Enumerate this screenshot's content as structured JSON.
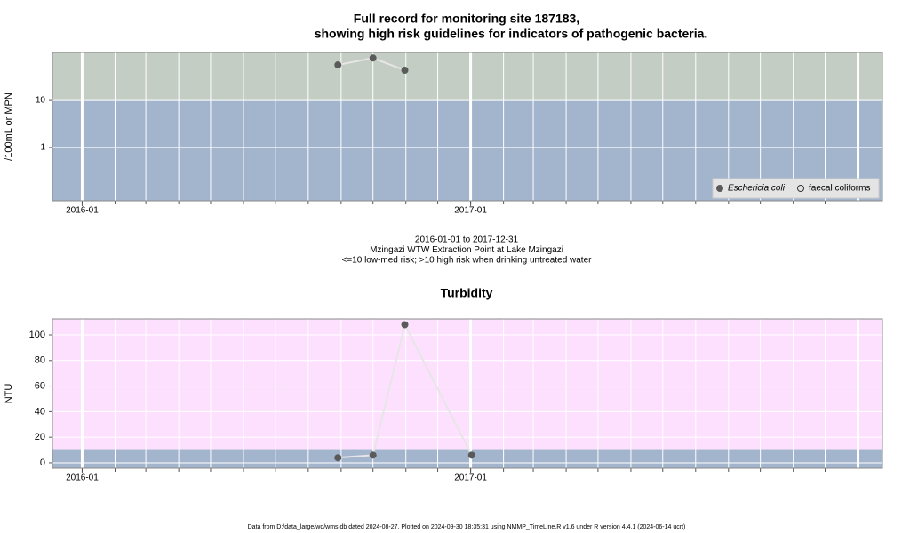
{
  "chart_data": [
    {
      "type": "line",
      "title": [
        "Full record for monitoring site 187183,",
        "showing high risk guidelines for indicators of pathogenic bacteria."
      ],
      "y_label": "/100mL or MPN",
      "log_y": true,
      "xlim": [
        "2015-12-04",
        "2018-01-24"
      ],
      "xticks": [
        {
          "value": "2016-01-01",
          "label": "2016-01"
        },
        {
          "value": "2017-01-01",
          "label": "2017-01"
        }
      ],
      "ylim": [
        0.074,
        105
      ],
      "yticks": [
        1,
        10
      ],
      "threshold": 10,
      "band_colors": {
        "above": "#c4cdc3",
        "below": "#a3b4cd"
      },
      "grid": true,
      "legend": "bottom-right",
      "series": [
        {
          "name": "Eschericia coli",
          "marker": "filled",
          "color": "#5a5a5a",
          "line_color": "#e6e6e6",
          "x": [
            "2016-08-29",
            "2016-10-01",
            "2016-10-31"
          ],
          "values": [
            57,
            80,
            44
          ]
        },
        {
          "name": "faecal coliforms",
          "marker": "open",
          "color": "#333333",
          "line_color": "#e6e6e6",
          "x": [],
          "values": []
        }
      ],
      "annotations": [
        "2016-01-01 to 2017-12-31",
        "Mzingazi WTW Extraction Point at Lake Mzingazi",
        "<=10 low-med risk; >10 high risk when drinking untreated water"
      ]
    },
    {
      "type": "line",
      "title": [
        "Turbidity"
      ],
      "y_label": "NTU",
      "log_y": false,
      "xlim": [
        "2015-12-04",
        "2018-01-24"
      ],
      "xticks": [
        {
          "value": "2016-01-01",
          "label": "2016-01"
        },
        {
          "value": "2017-01-01",
          "label": "2017-01"
        }
      ],
      "ylim": [
        -4.2,
        112.5
      ],
      "yticks": [
        0,
        20,
        40,
        60,
        80,
        100
      ],
      "threshold": 10,
      "band_colors": {
        "above": "#fde0fd",
        "below": "#a3b4cd"
      },
      "grid": true,
      "series": [
        {
          "name": "Turbidity",
          "marker": "filled",
          "color": "#5a5a5a",
          "line_color": "#e6e6e6",
          "x": [
            "2016-08-29",
            "2016-10-01",
            "2016-10-31",
            "2017-01-02"
          ],
          "values": [
            4,
            6,
            108,
            6
          ]
        }
      ]
    }
  ],
  "footer": "Data from D:/data_large/wq/wms.db dated 2024-08-27. Plotted on 2024-09-30 18:35:31 using NMMP_TimeLine.R v1.6 under R version 4.4.1 (2024-06-14 ucrt)"
}
